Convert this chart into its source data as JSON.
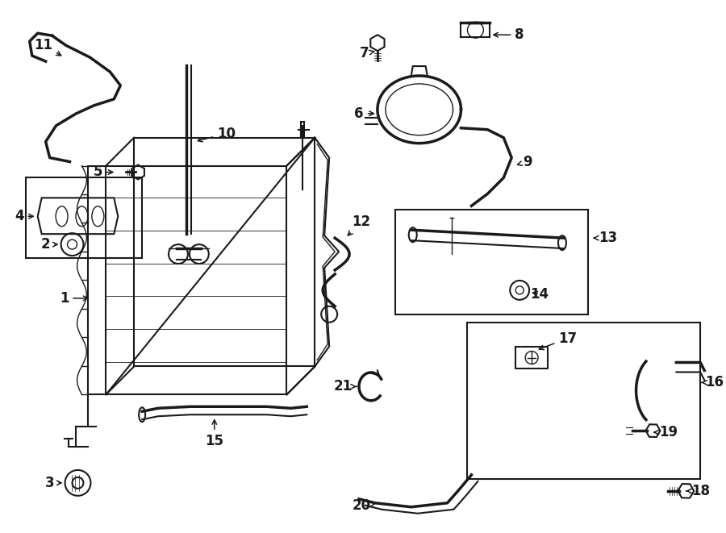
{
  "bg_color": "#ffffff",
  "line_color": "#1a1a1a",
  "fig_width": 9.0,
  "fig_height": 6.61,
  "dpi": 100
}
